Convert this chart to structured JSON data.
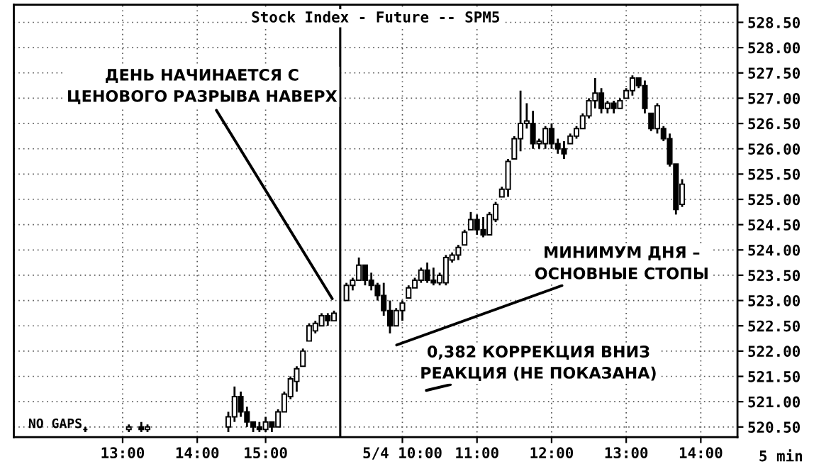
{
  "chart_data": {
    "type": "candlestick",
    "title": "Stock Index - Future -- SPM5",
    "categories": [
      null,
      null,
      null,
      null,
      null,
      null,
      null,
      null,
      null,
      null,
      null,
      null,
      null,
      null,
      null,
      null,
      null,
      "13:00",
      null,
      null,
      null,
      null,
      null,
      null,
      null,
      null,
      null,
      null,
      null,
      "14:00",
      null,
      null,
      null,
      null,
      null,
      null,
      null,
      null,
      null,
      null,
      "15:00",
      null,
      null,
      null,
      null,
      null,
      null,
      null,
      null,
      null,
      null,
      null,
      null,
      null,
      null,
      null,
      null,
      null,
      null,
      null,
      null,
      null,
      "5/4 10:00",
      null,
      null,
      null,
      null,
      null,
      null,
      null,
      null,
      null,
      null,
      null,
      "11:00",
      null,
      null,
      null,
      null,
      null,
      null,
      null,
      null,
      null,
      null,
      null,
      "12:00",
      null,
      null,
      null,
      null,
      null,
      null,
      null,
      null,
      null,
      null,
      null,
      "13:00",
      null,
      null,
      null,
      null,
      null,
      null,
      null,
      null,
      null,
      null,
      null,
      "14:00",
      null,
      null,
      null,
      null,
      null
    ],
    "ohlc": [
      null,
      null,
      null,
      null,
      null,
      null,
      null,
      null,
      null,
      null,
      null,
      [
        520.45,
        520.5,
        520.4,
        520.45
      ],
      null,
      null,
      null,
      null,
      null,
      null,
      [
        520.45,
        520.55,
        520.4,
        520.5
      ],
      null,
      [
        520.5,
        520.6,
        520.4,
        520.45
      ],
      [
        520.45,
        520.55,
        520.4,
        520.5
      ],
      null,
      null,
      null,
      null,
      null,
      null,
      null,
      null,
      null,
      null,
      null,
      null,
      [
        520.5,
        520.8,
        520.4,
        520.7
      ],
      [
        520.7,
        521.3,
        520.6,
        521.1
      ],
      [
        521.1,
        521.2,
        520.7,
        520.8
      ],
      [
        520.8,
        520.9,
        520.5,
        520.6
      ],
      [
        520.6,
        520.6,
        520.4,
        520.5
      ],
      [
        520.5,
        520.6,
        520.4,
        520.45
      ],
      [
        520.45,
        520.7,
        520.4,
        520.6
      ],
      [
        520.6,
        520.6,
        520.4,
        520.5
      ],
      [
        520.5,
        520.85,
        520.5,
        520.8
      ],
      [
        520.8,
        521.2,
        520.8,
        521.15
      ],
      [
        521.1,
        521.5,
        521.05,
        521.45
      ],
      [
        521.4,
        521.7,
        521.2,
        521.65
      ],
      [
        521.7,
        522.05,
        521.7,
        522.0
      ],
      [
        522.2,
        522.55,
        522.2,
        522.5
      ],
      [
        522.4,
        522.6,
        522.35,
        522.55
      ],
      [
        522.5,
        522.75,
        522.5,
        522.7
      ],
      [
        522.7,
        522.75,
        522.5,
        522.6
      ],
      [
        522.6,
        522.8,
        522.6,
        522.75
      ],
      null,
      [
        523.0,
        523.35,
        523.0,
        523.3
      ],
      [
        523.3,
        523.45,
        523.2,
        523.4
      ],
      [
        523.4,
        523.85,
        523.4,
        523.7
      ],
      [
        523.7,
        523.7,
        523.3,
        523.4
      ],
      [
        523.4,
        523.55,
        523.2,
        523.3
      ],
      [
        523.3,
        523.35,
        523.0,
        523.1
      ],
      [
        523.1,
        523.35,
        522.7,
        522.8
      ],
      [
        522.8,
        523.0,
        522.35,
        522.5
      ],
      [
        522.5,
        522.85,
        522.5,
        522.8
      ],
      [
        522.8,
        523.0,
        522.6,
        522.95
      ],
      [
        523.05,
        523.3,
        523.05,
        523.25
      ],
      [
        523.25,
        523.45,
        523.25,
        523.4
      ],
      [
        523.4,
        523.65,
        523.35,
        523.6
      ],
      [
        523.6,
        523.75,
        523.35,
        523.4
      ],
      [
        523.4,
        523.65,
        523.3,
        523.35
      ],
      [
        523.35,
        523.55,
        523.3,
        523.5
      ],
      [
        523.35,
        523.9,
        523.3,
        523.85
      ],
      [
        523.8,
        523.95,
        523.75,
        523.9
      ],
      [
        523.9,
        524.1,
        523.8,
        524.05
      ],
      [
        524.1,
        524.4,
        524.1,
        524.35
      ],
      [
        524.4,
        524.75,
        524.4,
        524.6
      ],
      [
        524.6,
        524.7,
        524.3,
        524.4
      ],
      [
        524.4,
        524.65,
        524.25,
        524.3
      ],
      [
        524.3,
        524.75,
        524.3,
        524.7
      ],
      [
        524.6,
        524.95,
        524.55,
        524.9
      ],
      [
        525.05,
        525.25,
        525.05,
        525.2
      ],
      [
        525.2,
        525.8,
        525.05,
        525.75
      ],
      [
        525.8,
        526.25,
        525.8,
        526.2
      ],
      [
        526.2,
        527.15,
        525.95,
        526.5
      ],
      [
        526.5,
        526.9,
        526.4,
        526.55
      ],
      [
        526.5,
        526.75,
        526.0,
        526.1
      ],
      [
        526.1,
        526.2,
        526.0,
        526.15
      ],
      [
        526.1,
        526.45,
        526.0,
        526.4
      ],
      [
        526.4,
        526.5,
        526.0,
        526.1
      ],
      [
        526.1,
        526.2,
        525.9,
        526.0
      ],
      [
        526.0,
        526.15,
        525.8,
        525.9
      ],
      [
        526.1,
        526.3,
        526.1,
        526.25
      ],
      [
        526.25,
        526.45,
        526.2,
        526.4
      ],
      [
        526.4,
        526.7,
        526.4,
        526.65
      ],
      [
        526.65,
        527.0,
        526.6,
        526.95
      ],
      [
        526.95,
        527.4,
        526.8,
        527.1
      ],
      [
        527.1,
        527.2,
        526.7,
        526.8
      ],
      [
        526.8,
        526.95,
        526.7,
        526.9
      ],
      [
        526.9,
        526.95,
        526.7,
        526.8
      ],
      [
        526.8,
        527.0,
        526.8,
        526.95
      ],
      [
        527.0,
        527.2,
        527.0,
        527.15
      ],
      [
        527.15,
        527.45,
        527.05,
        527.4
      ],
      [
        527.4,
        527.4,
        527.2,
        527.25
      ],
      [
        527.25,
        527.35,
        526.7,
        526.8
      ],
      [
        526.7,
        526.7,
        526.35,
        526.4
      ],
      [
        526.4,
        526.9,
        526.3,
        526.85
      ],
      [
        526.4,
        526.45,
        526.15,
        526.2
      ],
      [
        526.2,
        526.3,
        525.65,
        525.7
      ],
      [
        525.7,
        525.7,
        524.7,
        524.8
      ],
      [
        524.9,
        525.4,
        524.85,
        525.3
      ],
      null,
      null,
      null,
      null,
      null,
      null,
      null,
      null
    ],
    "color": "#000000",
    "ylim": [
      520.3,
      528.85
    ],
    "yticks": [
      {
        "value": 520.5,
        "label": "520.50"
      },
      {
        "value": 521,
        "label": "521.00"
      },
      {
        "value": 521.5,
        "label": "521.50"
      },
      {
        "value": 522,
        "label": "522.00"
      },
      {
        "value": 522.5,
        "label": "522.50"
      },
      {
        "value": 523,
        "label": "523.00"
      },
      {
        "value": 523.5,
        "label": "523.50"
      },
      {
        "value": 524,
        "label": "524.00"
      },
      {
        "value": 524.5,
        "label": "524.50"
      },
      {
        "value": 525,
        "label": "525.00"
      },
      {
        "value": 525.5,
        "label": "525.50"
      },
      {
        "value": 526,
        "label": "526.00"
      },
      {
        "value": 526.5,
        "label": "526.50"
      },
      {
        "value": 527,
        "label": "527.00"
      },
      {
        "value": 527.5,
        "label": "527.50"
      },
      {
        "value": 528,
        "label": "528.00"
      },
      {
        "value": 528.5,
        "label": "528.50"
      }
    ],
    "grid": true,
    "annotations": [
      "ДЕНЬ НАЧИНАЕТСЯ С\nЦЕНОВОГО РАЗРЫВА НАВЕРХ",
      "МИНИМУМ ДНЯ –\nОСНОВНЫЕ СТОПЫ",
      "0,382 КОРРЕКЦИЯ ВНИЗ\nРЕАКЦИЯ (НЕ ПОКАЗАНА)",
      "NO GAPS",
      "5 min"
    ]
  }
}
